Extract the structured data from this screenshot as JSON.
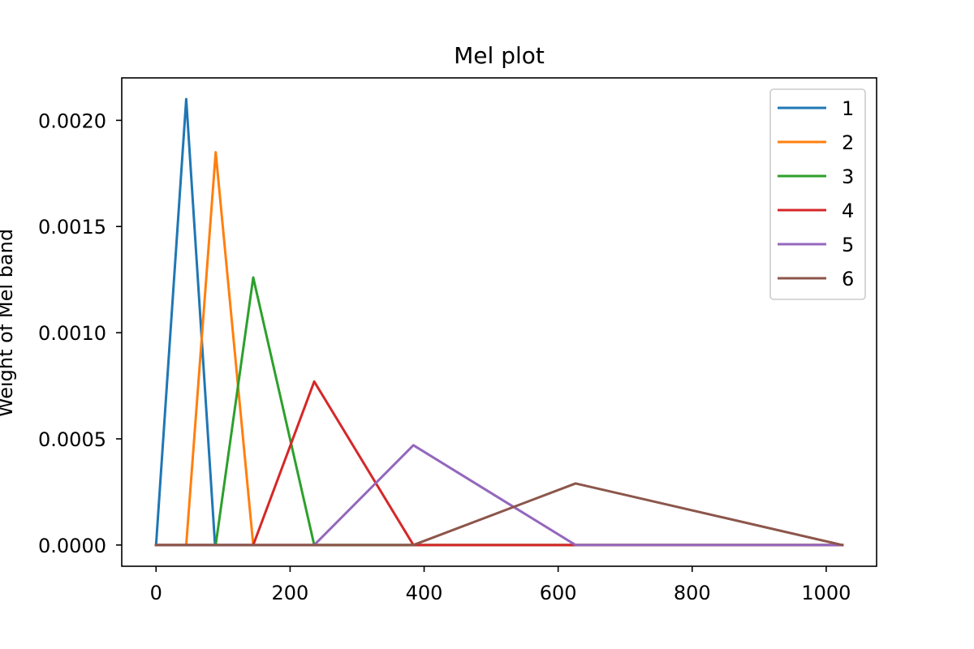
{
  "chart_data": {
    "type": "line",
    "title": "Mel plot",
    "xlabel": "",
    "ylabel": "Weight of Mel band",
    "xlim": [
      -51.2,
      1075.2
    ],
    "ylim": [
      -0.0001,
      0.0022
    ],
    "xticks": [
      0,
      200,
      400,
      600,
      800,
      1000
    ],
    "xtick_labels": [
      "0",
      "200",
      "400",
      "600",
      "800",
      "1000"
    ],
    "yticks": [
      0,
      0.0005,
      0.001,
      0.0015,
      0.002
    ],
    "ytick_labels": [
      "0.0000",
      "0.0005",
      "0.0010",
      "0.0015",
      "0.0020"
    ],
    "grid": false,
    "legend_position": "top-right",
    "series": [
      {
        "name": "1",
        "color": "#1f77b4",
        "x": [
          0,
          45,
          88,
          1024
        ],
        "y": [
          0,
          0.0021,
          0,
          0
        ]
      },
      {
        "name": "2",
        "color": "#ff7f0e",
        "x": [
          0,
          45,
          89,
          145,
          1024
        ],
        "y": [
          0,
          0,
          0.00185,
          0,
          0
        ]
      },
      {
        "name": "3",
        "color": "#2ca02c",
        "x": [
          0,
          89,
          145,
          236,
          1024
        ],
        "y": [
          0,
          0,
          0.00126,
          0,
          0
        ]
      },
      {
        "name": "4",
        "color": "#d62728",
        "x": [
          0,
          145,
          236,
          384,
          1024
        ],
        "y": [
          0,
          0,
          0.00077,
          0,
          0
        ]
      },
      {
        "name": "5",
        "color": "#9467bd",
        "x": [
          0,
          236,
          384,
          626,
          1024
        ],
        "y": [
          0,
          0,
          0.00047,
          0,
          0
        ]
      },
      {
        "name": "6",
        "color": "#8c564b",
        "x": [
          0,
          384,
          626,
          1024
        ],
        "y": [
          0,
          0,
          0.00029,
          0
        ]
      }
    ]
  }
}
